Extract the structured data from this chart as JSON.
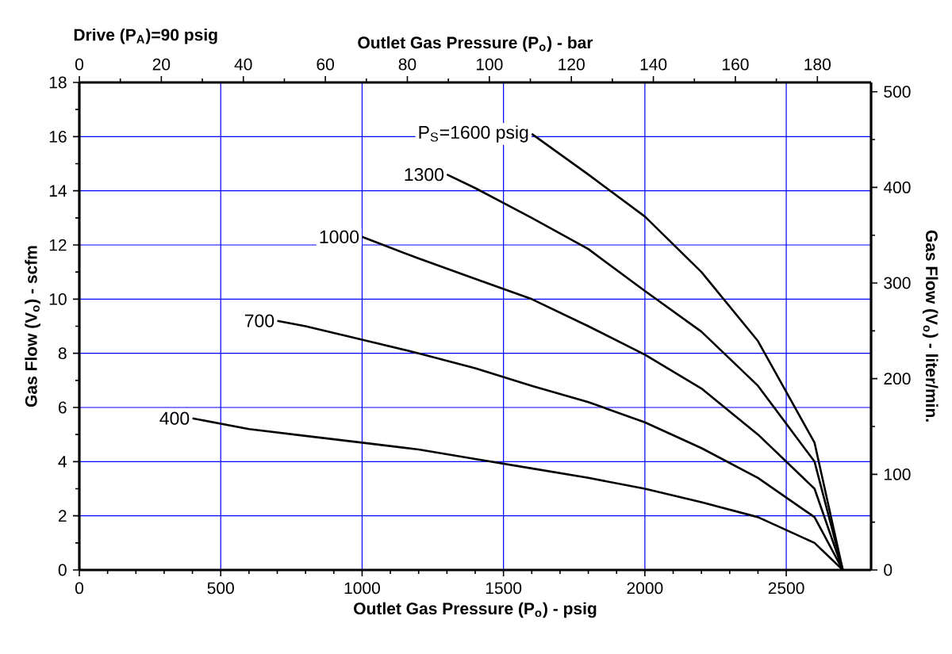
{
  "chart_data": {
    "type": "line",
    "xlabel": "Outlet Gas Pressure (P$_{o}$) - psig",
    "ylabel": "Gas Flow (V$_{o}$) - scfm",
    "x2label": "Outlet Gas Pressure (P$_{o}$) - bar",
    "y2label": "Gas Flow (V$_{o}$) - liter/min.",
    "annotations": [
      "Drive (P$_{A}$)=90 psig"
    ],
    "xlim": [
      0,
      2800
    ],
    "xticks": [
      0,
      500,
      1000,
      1500,
      2000,
      2500
    ],
    "ylim": [
      0,
      18
    ],
    "yticks": [
      0,
      2,
      4,
      6,
      8,
      10,
      12,
      14,
      16,
      18
    ],
    "x2lim": [
      0,
      193.1
    ],
    "x2ticks": [
      0,
      20,
      40,
      60,
      80,
      100,
      120,
      140,
      160,
      180
    ],
    "y2lim": [
      0,
      509.7
    ],
    "y2ticks": [
      0,
      100,
      200,
      300,
      400,
      500
    ],
    "grid": true,
    "marker": "none",
    "line_style": "solid",
    "series": [
      {
        "name": "P$_{S}$=1600 psig",
        "color": "#000000",
        "x": [
          1600,
          1800,
          2000,
          2200,
          2400,
          2600,
          2700
        ],
        "values": [
          16.1,
          14.6,
          13.05,
          11.0,
          8.45,
          4.7,
          0
        ]
      },
      {
        "name": "1300",
        "color": "#000000",
        "x": [
          1300,
          1400,
          1600,
          1800,
          2000,
          2200,
          2400,
          2600,
          2700
        ],
        "values": [
          14.6,
          14.1,
          13.0,
          11.85,
          10.3,
          8.8,
          6.8,
          4.0,
          0
        ]
      },
      {
        "name": "1000",
        "color": "#000000",
        "x": [
          1000,
          1200,
          1400,
          1600,
          1800,
          2000,
          2200,
          2400,
          2600,
          2700
        ],
        "values": [
          12.3,
          11.5,
          10.75,
          10.0,
          9.0,
          7.95,
          6.7,
          5.0,
          3.0,
          0
        ]
      },
      {
        "name": "700",
        "color": "#000000",
        "x": [
          700,
          800,
          1000,
          1200,
          1400,
          1600,
          1800,
          2000,
          2200,
          2400,
          2600,
          2700
        ],
        "values": [
          9.2,
          9.0,
          8.5,
          8.0,
          7.45,
          6.8,
          6.2,
          5.45,
          4.5,
          3.4,
          1.95,
          0
        ]
      },
      {
        "name": "400",
        "color": "#000000",
        "x": [
          400,
          600,
          800,
          1000,
          1200,
          1400,
          1600,
          1800,
          2000,
          2200,
          2400,
          2600,
          2700
        ],
        "values": [
          5.6,
          5.2,
          4.95,
          4.7,
          4.45,
          4.1,
          3.75,
          3.4,
          3.0,
          2.5,
          1.95,
          1.0,
          0
        ]
      }
    ]
  }
}
